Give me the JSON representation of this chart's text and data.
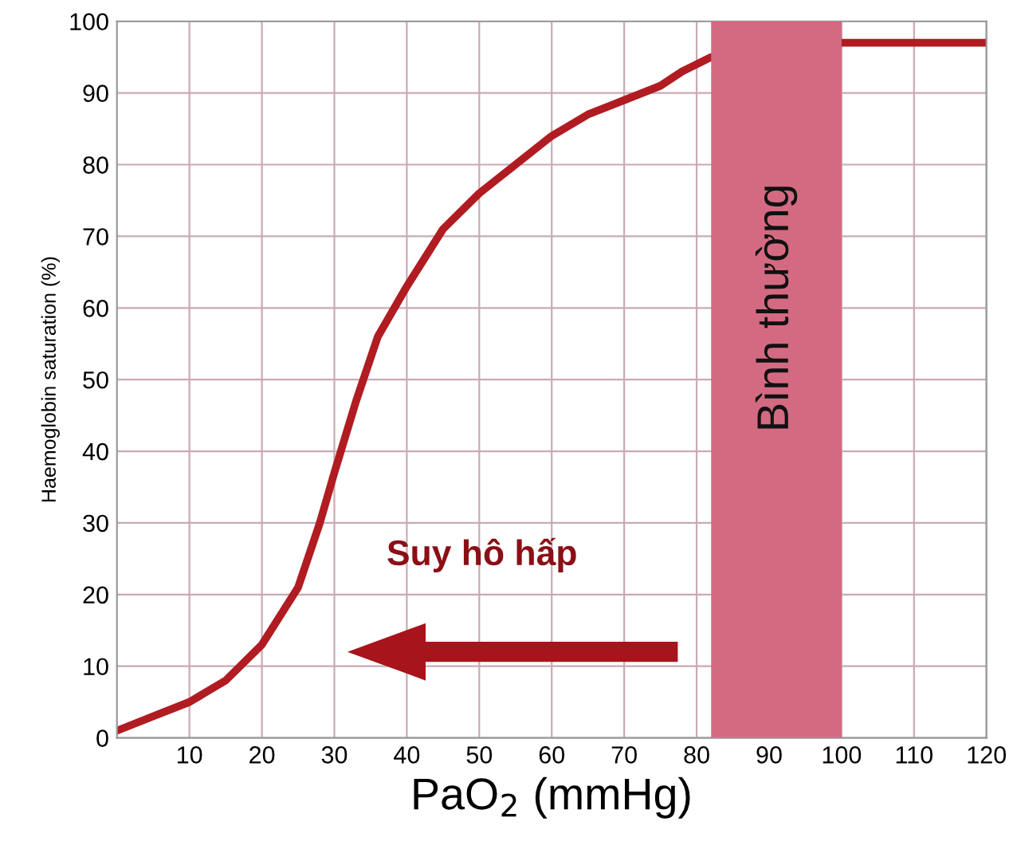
{
  "chart_data": {
    "type": "line",
    "xlabel": "PaO$_{2}$ (mmHg)",
    "ylabel": "Haemoglobin saturation (%)",
    "x": [
      0,
      5,
      10,
      15,
      20,
      25,
      28,
      30,
      33,
      36,
      40,
      45,
      50,
      55,
      60,
      65,
      70,
      75,
      78,
      82,
      90,
      100,
      110,
      120
    ],
    "series": [
      {
        "color": "#b01c22",
        "values": [
          1,
          3,
          5,
          8,
          13,
          21,
          30,
          37,
          47,
          56,
          63,
          71,
          76,
          80,
          84,
          87,
          89,
          91,
          93,
          95,
          null,
          97,
          97,
          97
        ]
      }
    ],
    "xlim": [
      0,
      120
    ],
    "ylim": [
      0,
      100
    ],
    "xticks": [
      10,
      20,
      30,
      40,
      50,
      60,
      70,
      80,
      90,
      100,
      110,
      120
    ],
    "yticks": [
      0,
      10,
      20,
      30,
      40,
      50,
      60,
      70,
      80,
      90,
      100
    ],
    "grid": true,
    "marker": "none",
    "line_style": "solid",
    "bands": [
      {
        "axis": "x",
        "from": 82,
        "to": 100,
        "label": "Bình thường",
        "color": "#d46a82"
      }
    ],
    "annotations": [
      "Suy hô hấp"
    ]
  }
}
